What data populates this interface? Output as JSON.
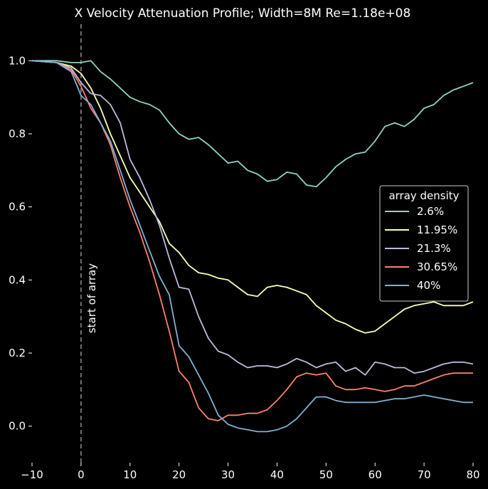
{
  "chart_data": {
    "type": "line",
    "title": "X Velocity Attenuation Profile;   Width=8M   Re=1.18e+08",
    "xlabel": "",
    "ylabel": "",
    "xlim": [
      -10,
      80
    ],
    "ylim": [
      -0.1,
      1.1
    ],
    "xticks": [
      -10,
      0,
      10,
      20,
      30,
      40,
      50,
      60,
      70,
      80
    ],
    "xtick_labels": [
      "−10",
      "0",
      "10",
      "20",
      "30",
      "40",
      "50",
      "60",
      "70",
      "80"
    ],
    "yticks": [
      0.0,
      0.2,
      0.4,
      0.6,
      0.8,
      1.0
    ],
    "ytick_labels": [
      "0.0",
      "0.2",
      "0.4",
      "0.6",
      "0.8",
      "1.0"
    ],
    "grid": false,
    "legend": {
      "title": "array density",
      "placement": "center-right"
    },
    "annotation": {
      "text": "start of array",
      "x": 0
    },
    "series": [
      {
        "name": "2.6%",
        "color": "#8dd3c7",
        "x": [
          -10,
          -5,
          -2,
          0,
          2,
          4,
          6,
          8,
          10,
          12,
          14,
          16,
          18,
          20,
          22,
          24,
          26,
          28,
          30,
          32,
          34,
          36,
          38,
          40,
          42,
          44,
          46,
          48,
          50,
          52,
          54,
          56,
          58,
          60,
          62,
          64,
          66,
          68,
          70,
          72,
          74,
          76,
          78,
          80
        ],
        "y": [
          1.0,
          1.0,
          0.995,
          0.995,
          1.0,
          0.97,
          0.95,
          0.925,
          0.9,
          0.888,
          0.88,
          0.865,
          0.83,
          0.8,
          0.785,
          0.79,
          0.77,
          0.745,
          0.72,
          0.725,
          0.7,
          0.69,
          0.67,
          0.675,
          0.695,
          0.69,
          0.66,
          0.655,
          0.68,
          0.71,
          0.73,
          0.745,
          0.75,
          0.78,
          0.82,
          0.83,
          0.82,
          0.84,
          0.87,
          0.88,
          0.905,
          0.92,
          0.93,
          0.94
        ]
      },
      {
        "name": "11.95%",
        "color": "#ffffb3",
        "x": [
          -10,
          -5,
          -2,
          0,
          2,
          4,
          6,
          8,
          10,
          12,
          14,
          16,
          18,
          20,
          22,
          24,
          26,
          28,
          30,
          32,
          34,
          36,
          38,
          40,
          42,
          44,
          46,
          48,
          50,
          52,
          54,
          56,
          58,
          60,
          62,
          64,
          66,
          68,
          70,
          72,
          74,
          76,
          78,
          80
        ],
        "y": [
          1.0,
          0.995,
          0.985,
          0.965,
          0.925,
          0.87,
          0.8,
          0.74,
          0.68,
          0.64,
          0.6,
          0.56,
          0.5,
          0.475,
          0.44,
          0.42,
          0.415,
          0.405,
          0.4,
          0.38,
          0.36,
          0.355,
          0.38,
          0.385,
          0.38,
          0.37,
          0.36,
          0.33,
          0.31,
          0.29,
          0.28,
          0.265,
          0.255,
          0.26,
          0.28,
          0.3,
          0.32,
          0.33,
          0.335,
          0.34,
          0.33,
          0.33,
          0.33,
          0.34
        ]
      },
      {
        "name": "21.3%",
        "color": "#bebada",
        "x": [
          -10,
          -5,
          -2,
          0,
          2,
          4,
          6,
          8,
          10,
          12,
          14,
          16,
          18,
          20,
          22,
          24,
          26,
          28,
          30,
          32,
          34,
          36,
          38,
          40,
          42,
          44,
          46,
          48,
          50,
          52,
          54,
          56,
          58,
          60,
          62,
          64,
          66,
          68,
          70,
          72,
          74,
          76,
          78,
          80
        ],
        "y": [
          1.0,
          0.995,
          0.98,
          0.94,
          0.91,
          0.905,
          0.88,
          0.83,
          0.73,
          0.68,
          0.62,
          0.55,
          0.46,
          0.38,
          0.375,
          0.3,
          0.24,
          0.205,
          0.195,
          0.175,
          0.16,
          0.165,
          0.165,
          0.16,
          0.17,
          0.185,
          0.175,
          0.16,
          0.17,
          0.175,
          0.15,
          0.16,
          0.14,
          0.175,
          0.17,
          0.16,
          0.16,
          0.145,
          0.15,
          0.16,
          0.17,
          0.175,
          0.175,
          0.17
        ]
      },
      {
        "name": "30.65%",
        "color": "#fb8072",
        "x": [
          -10,
          -5,
          -2,
          0,
          2,
          4,
          6,
          8,
          10,
          12,
          14,
          16,
          18,
          20,
          22,
          24,
          26,
          28,
          30,
          32,
          34,
          36,
          38,
          40,
          42,
          44,
          46,
          48,
          50,
          52,
          54,
          56,
          58,
          60,
          62,
          64,
          66,
          68,
          70,
          72,
          74,
          76,
          78,
          80
        ],
        "y": [
          1.0,
          0.995,
          0.975,
          0.93,
          0.87,
          0.83,
          0.77,
          0.68,
          0.6,
          0.53,
          0.45,
          0.36,
          0.26,
          0.15,
          0.12,
          0.05,
          0.02,
          0.015,
          0.03,
          0.03,
          0.035,
          0.035,
          0.045,
          0.07,
          0.1,
          0.135,
          0.145,
          0.14,
          0.145,
          0.11,
          0.1,
          0.1,
          0.105,
          0.1,
          0.095,
          0.1,
          0.11,
          0.11,
          0.12,
          0.13,
          0.14,
          0.145,
          0.145,
          0.145
        ]
      },
      {
        "name": "40%",
        "color": "#80b1d3",
        "x": [
          -10,
          -5,
          -2,
          0,
          2,
          4,
          6,
          8,
          10,
          12,
          14,
          16,
          18,
          20,
          22,
          24,
          26,
          28,
          30,
          32,
          34,
          36,
          38,
          40,
          42,
          44,
          46,
          48,
          50,
          52,
          54,
          56,
          58,
          60,
          62,
          64,
          66,
          68,
          70,
          72,
          74,
          76,
          78,
          80
        ],
        "y": [
          1.0,
          0.995,
          0.97,
          0.905,
          0.88,
          0.83,
          0.78,
          0.7,
          0.62,
          0.55,
          0.48,
          0.41,
          0.36,
          0.22,
          0.19,
          0.14,
          0.09,
          0.03,
          0.005,
          -0.005,
          -0.01,
          -0.015,
          -0.015,
          -0.01,
          0.0,
          0.02,
          0.05,
          0.08,
          0.08,
          0.07,
          0.065,
          0.065,
          0.065,
          0.065,
          0.07,
          0.075,
          0.075,
          0.08,
          0.085,
          0.08,
          0.075,
          0.07,
          0.065,
          0.065
        ]
      }
    ]
  }
}
